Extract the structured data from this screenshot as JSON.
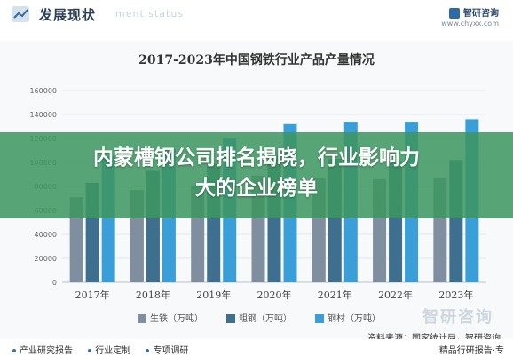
{
  "header": {
    "title": "发展现状",
    "subtitle": "ment status",
    "brand": "智研咨询",
    "url": "www.chyxx.com"
  },
  "chart_data": {
    "type": "bar",
    "title": "2017-2023年中国钢铁行业产品产量情况",
    "categories": [
      "2017年",
      "2018年",
      "2019年",
      "2020年",
      "2021年",
      "2022年",
      "2023年"
    ],
    "yticks": [
      "160000",
      "140000",
      "120000",
      "100000",
      "80000",
      "60000",
      "40000",
      "20000",
      "0"
    ],
    "ylim": [
      0,
      160000
    ],
    "series": [
      {
        "name": "生铁（万吨）",
        "color": "#7f8fa0",
        "values": [
          71000,
          77000,
          81000,
          89000,
          87000,
          86000,
          87000
        ]
      },
      {
        "name": "粗钢（万吨）",
        "color": "#3f6f8f",
        "values": [
          83000,
          93000,
          99000,
          106000,
          103000,
          101000,
          102000
        ]
      },
      {
        "name": "钢材（万吨）",
        "color": "#3a9fd8",
        "values": [
          105000,
          111000,
          120000,
          132000,
          134000,
          134000,
          136000
        ]
      }
    ],
    "legend_position": "bottom",
    "grid": true
  },
  "banner": {
    "line1": "内蒙槽钢公司排名揭晓，行业影响力",
    "line2": "大的企业榜单"
  },
  "watermark": "智研咨询",
  "source": "资料来源：国家统计局，智研咨询",
  "footer": {
    "links": [
      "产业研究报告",
      "行业定制",
      "专项调研"
    ],
    "right": "精品行研报告·专"
  }
}
